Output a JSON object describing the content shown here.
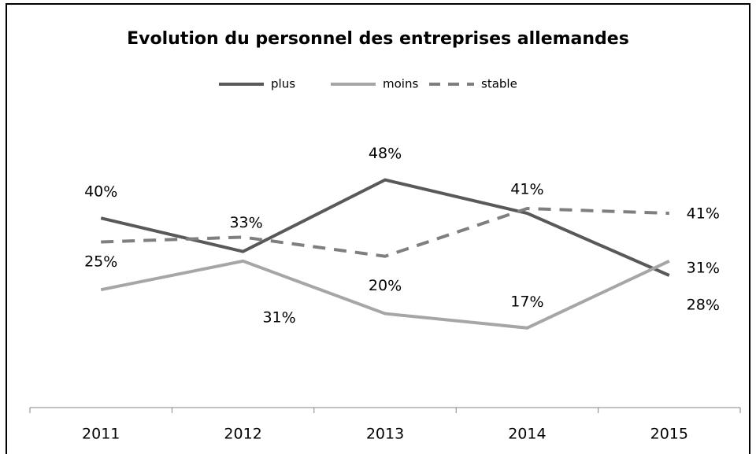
{
  "chart_data": {
    "type": "line",
    "title": "Evolution du personnel des entreprises allemandes",
    "categories": [
      "2011",
      "2012",
      "2013",
      "2014",
      "2015"
    ],
    "series": [
      {
        "name": "plus",
        "color": "#595959",
        "line_style": "solid",
        "values": [
          40,
          33,
          48,
          41,
          28
        ]
      },
      {
        "name": "moins",
        "color": "#a6a6a6",
        "line_style": "solid",
        "values": [
          25,
          31,
          20,
          17,
          31
        ]
      },
      {
        "name": "stable",
        "color": "#7f7f7f",
        "line_style": "dashed",
        "values": [
          35,
          36,
          32,
          42,
          41
        ],
        "value_labels": [
          null,
          null,
          null,
          null,
          "41%"
        ]
      }
    ],
    "ylim": [
      0,
      70
    ],
    "legend": "top"
  }
}
